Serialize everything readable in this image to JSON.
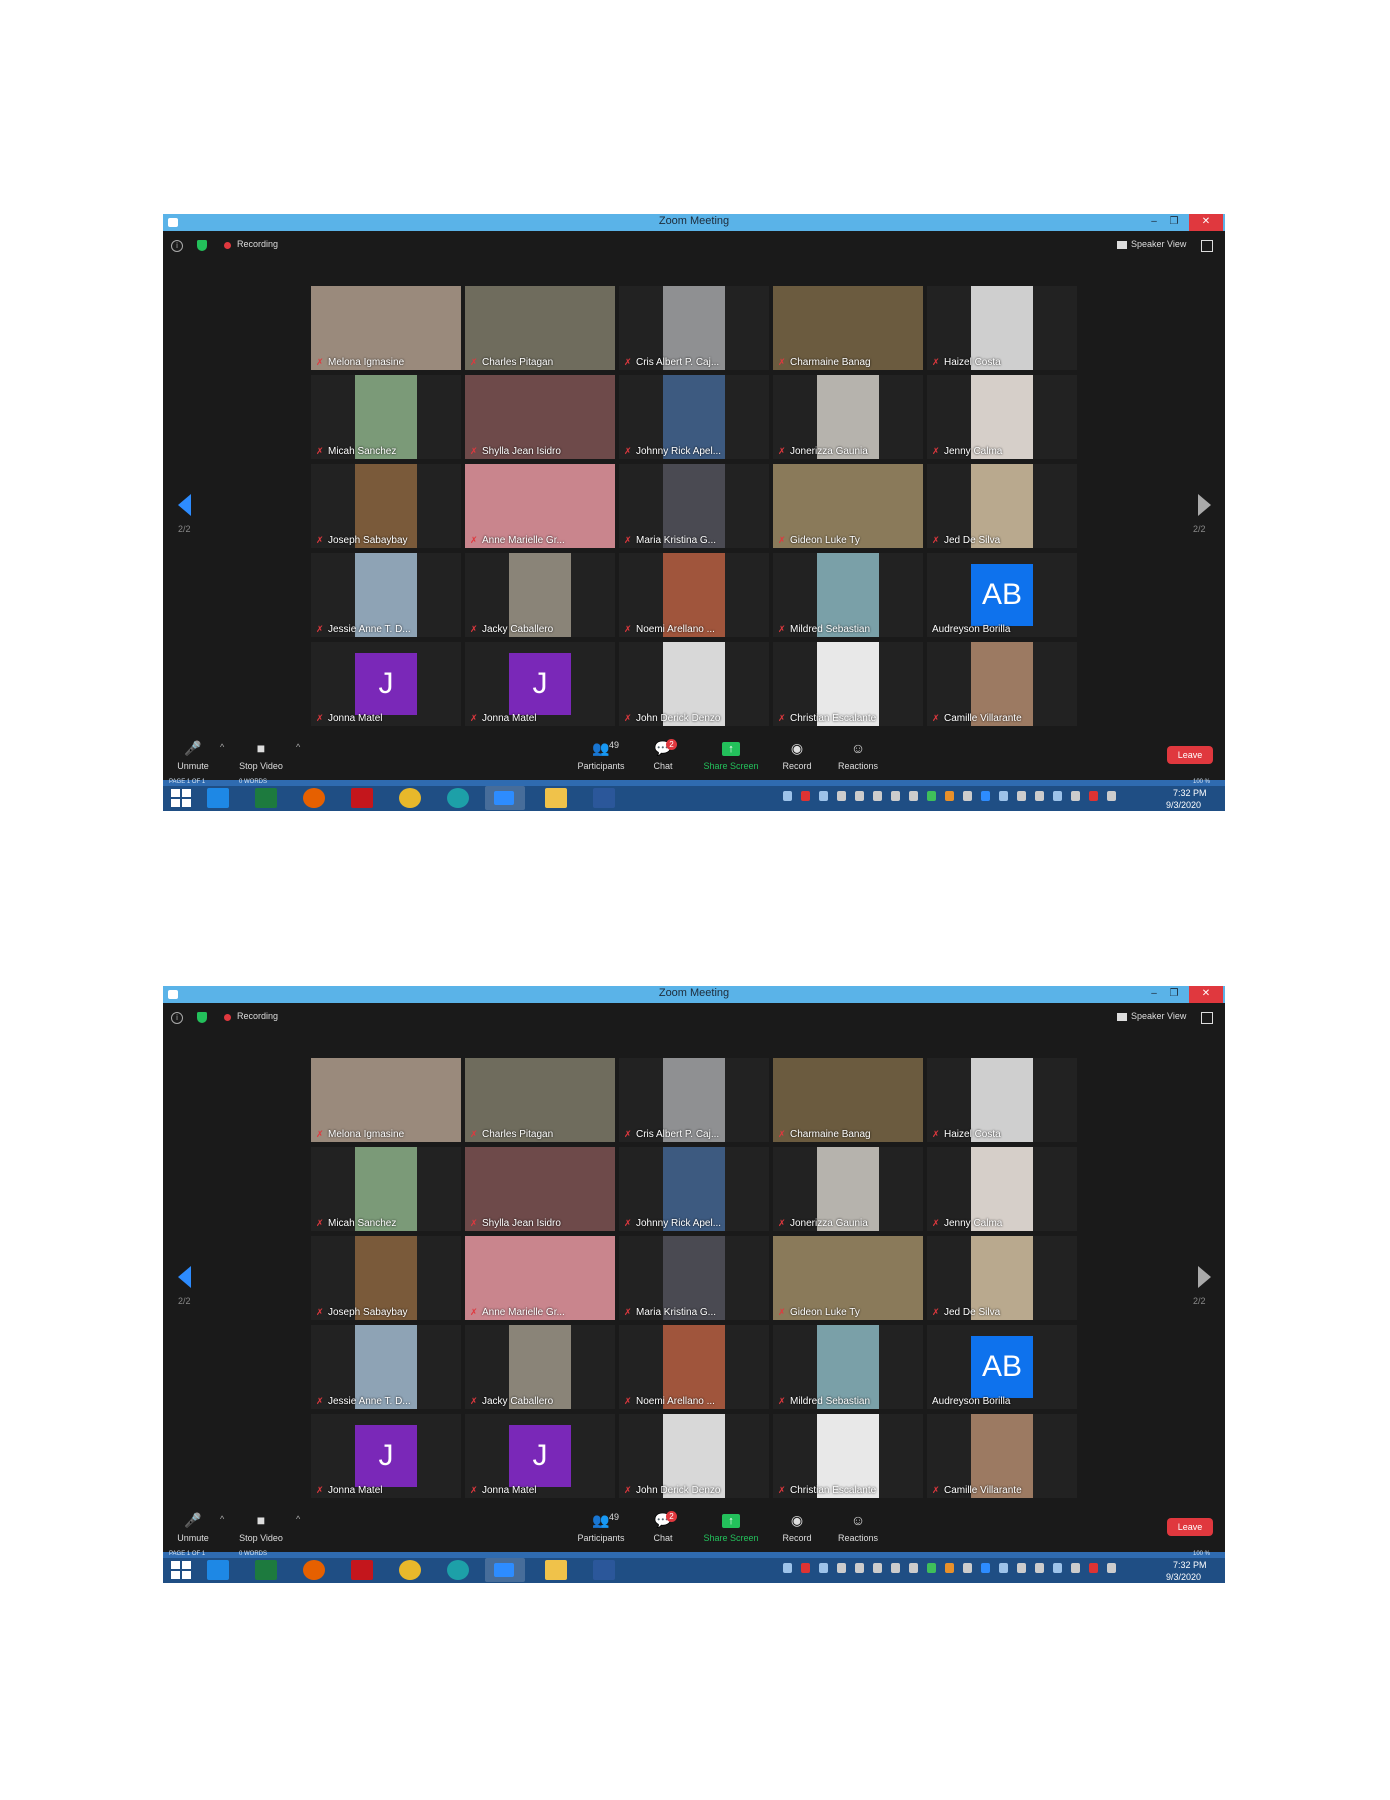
{
  "window": {
    "title": "Zoom Meeting",
    "minimize": "–",
    "maximize": "❐",
    "close": "✕"
  },
  "topbar": {
    "recording_label": "Recording",
    "view_label": "Speaker View"
  },
  "pagination": {
    "left": "2/2",
    "right": "2/2"
  },
  "participants": [
    {
      "name": "Melona Igmasine",
      "muted": true,
      "feed_color": "#9a8a7c"
    },
    {
      "name": "Charles Pitagan",
      "muted": true,
      "feed_color": "#6f6c5d"
    },
    {
      "name": "Cris Albert P. Caj...",
      "muted": true,
      "feed_color": "#8f9092"
    },
    {
      "name": "Charmaine Banag",
      "muted": true,
      "feed_color": "#6b5b3f"
    },
    {
      "name": "Haizel Costa",
      "muted": true,
      "feed_color": "#cfcfcf"
    },
    {
      "name": "Micah Sanchez",
      "muted": true,
      "feed_color": "#7b9a78"
    },
    {
      "name": "Shylla Jean Isidro",
      "muted": true,
      "feed_color": "#6e4a4a"
    },
    {
      "name": "Johnny Rick Apel...",
      "muted": true,
      "feed_color": "#3d5a80"
    },
    {
      "name": "Jonerizza Gaunia",
      "muted": true,
      "feed_color": "#b6b3ad"
    },
    {
      "name": "Jenny Calma",
      "muted": true,
      "feed_color": "#d6cfc9"
    },
    {
      "name": "Joseph Sabaybay",
      "muted": true,
      "feed_color": "#7a5a3a"
    },
    {
      "name": "Anne Marielle Gr...",
      "muted": true,
      "feed_color": "#c9858d"
    },
    {
      "name": "Maria Kristina G...",
      "muted": true,
      "feed_color": "#4a4a52"
    },
    {
      "name": "Gideon Luke Ty",
      "muted": true,
      "feed_color": "#8a7a5a"
    },
    {
      "name": "Jed De Silva",
      "muted": true,
      "feed_color": "#b9a98e"
    },
    {
      "name": "Jessie Anne T. D...",
      "muted": true,
      "feed_color": "#8ea3b5"
    },
    {
      "name": "Jacky Caballero",
      "muted": true,
      "feed_color": "#8a8478"
    },
    {
      "name": "Noemi Arellano ...",
      "muted": true,
      "feed_color": "#a0553c"
    },
    {
      "name": "Mildred Sebastian",
      "muted": true,
      "feed_color": "#7aa0a8"
    },
    {
      "name": "Audreyson Borilla",
      "muted": false,
      "avatar": "AB",
      "feed_color": "#0e72ed"
    },
    {
      "name": "Jonna Matel",
      "muted": true,
      "avatar": "J",
      "feed_color": "#7a28b8"
    },
    {
      "name": "Jonna Matel",
      "muted": true,
      "avatar": "J",
      "feed_color": "#7a28b8"
    },
    {
      "name": "John Derick Denzo",
      "muted": true,
      "feed_color": "#d8d8d8"
    },
    {
      "name": "Christian Escalante",
      "muted": true,
      "feed_color": "#e8e8e8"
    },
    {
      "name": "Camille Villarante",
      "muted": true,
      "feed_color": "#9c7a62"
    }
  ],
  "controls": {
    "unmute": "Unmute",
    "stop_video": "Stop Video",
    "participants": "Participants",
    "participants_count": "49",
    "chat": "Chat",
    "chat_badge": "2",
    "share_screen": "Share Screen",
    "record": "Record",
    "reactions": "Reactions",
    "leave": "Leave"
  },
  "taskbar": {
    "time": "7:32 PM",
    "date": "9/3/2020",
    "strip_left": "PAGE 1 OF 1",
    "strip_mid": "0 WORDS",
    "strip_right": "100 %"
  },
  "colors": {
    "zoom_blue": "#2d8cff",
    "leave_red": "#e0383e",
    "share_green": "#23c05b",
    "titlebar": "#5ab3e8",
    "taskbar": "#1f4e84"
  }
}
